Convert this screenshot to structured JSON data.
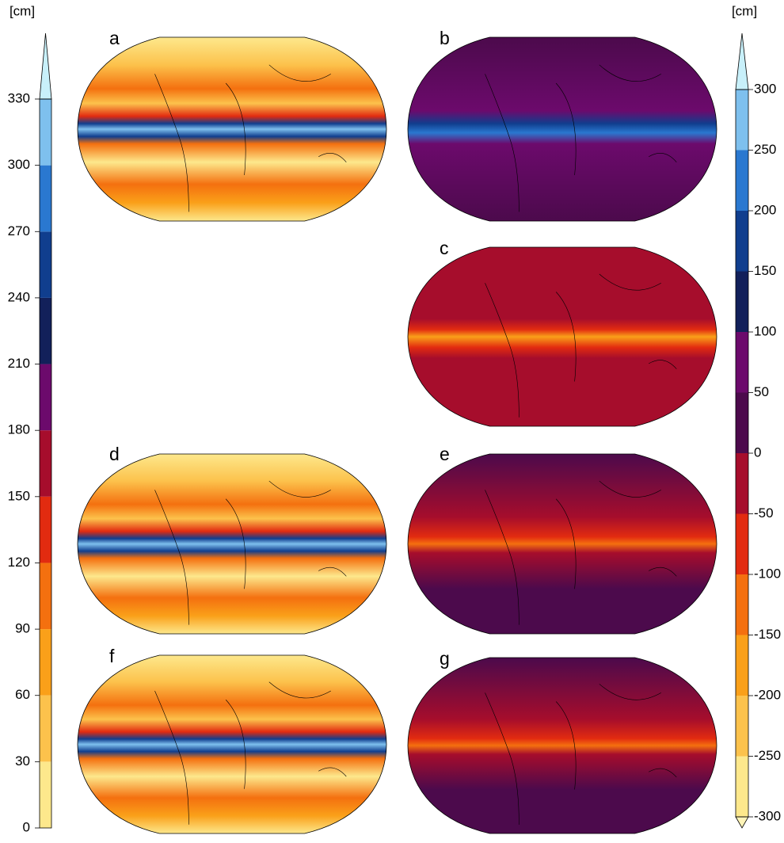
{
  "colorbars": [
    {
      "unit": "[cm]",
      "ylim": [
        0,
        330
      ],
      "ticks": [
        0,
        30,
        60,
        90,
        120,
        150,
        180,
        210,
        240,
        270,
        300,
        330
      ],
      "colors": [
        "#fde88c",
        "#fcc24c",
        "#faa019",
        "#f4700f",
        "#e22b10",
        "#a60d2c",
        "#6c0a6c",
        "#12205a",
        "#103e8e",
        "#2a78d0",
        "#7ec0ee"
      ],
      "extend_colors": [
        null,
        "#c8f0fa"
      ]
    },
    {
      "unit": "[cm]",
      "ylim": [
        -300,
        300
      ],
      "ticks": [
        -300,
        -250,
        -200,
        -150,
        -100,
        -50,
        0,
        50,
        100,
        150,
        200,
        250,
        300
      ],
      "colors": [
        "#fde88c",
        "#fcc24c",
        "#faa019",
        "#f4700f",
        "#e22b10",
        "#a60d2c",
        "#4c0a4c",
        "#6c0a6c",
        "#12205a",
        "#103e8e",
        "#2a78d0",
        "#7ec0ee"
      ],
      "extend_colors": [
        "#fff4b8",
        "#c8f0fa"
      ]
    }
  ],
  "panels": [
    {
      "label": "a"
    },
    {
      "label": "b"
    },
    {
      "label": "c"
    },
    {
      "label": "d"
    },
    {
      "label": "e"
    },
    {
      "label": "f"
    },
    {
      "label": "g"
    }
  ]
}
